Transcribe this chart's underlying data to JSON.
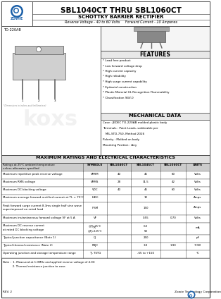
{
  "title_main": "SBL1040CT THRU SBL1060CT",
  "title_sub": "SCHOTTKY BARRIER RECTIFIER",
  "title_line3_left": "Reverse Voltage - 40 to 60 Volts",
  "title_line3_right": "Forward Current - 10 Amperes",
  "package": "TO-220AB",
  "features_title": "FEATURES",
  "features": [
    "Lead free product",
    "Low forward voltage drop",
    "High current capacity",
    "High reliability",
    "High surge current capability",
    "Epitaxial construction",
    "Plastic Material UL Recognition Flammability",
    "Classification 94V-0"
  ],
  "mech_title": "MECHANICAL DATA",
  "mech_items": [
    "Case : JEDEC TO-220AB molded plastic body",
    "Terminals : Point Leads, solderable per",
    "   MIL-STD-750, Method 2026",
    "Polarity : Molded on body",
    "Mounting Position : Any"
  ],
  "table_title": "MAXIMUM RATINGS AND ELECTRICAL CHARACTERISTICS",
  "table_header_left": "Ratings at 25°C ambient temperature\nunless otherwise specified",
  "col_headers": [
    "SYMBOLS",
    "SBL1040CT",
    "SBL1045CT",
    "SBL1060CT",
    "UNITS"
  ],
  "row_params": [
    "Maximum repetitive peak reverse voltage",
    "Maximum RMS voltage",
    "Maximum DC blocking voltage",
    "Maximum average forward rectified current at TL = 75°C",
    "Peak forward surge current 8.3ms single half sine wave\nsuperimposed on rated load",
    "Maximum instantaneous forward voltage VF at 5 A",
    "Maximum DC reverse current\nat rated DC blocking voltage",
    "Typical junction capacitance (Note 1)",
    "Typical thermal resistance (Note 2)",
    "Operating junction and storage temperature range"
  ],
  "row_symbols": [
    "VRRM",
    "VRMS",
    "VDC",
    "I(AV)",
    "IFSM",
    "VF",
    "IR",
    "CJ",
    "RθJC",
    "TJ, TSTG"
  ],
  "row_cond": [
    "",
    "",
    "",
    "",
    "",
    "",
    "@TJ=25°C\n@TJ=125°C",
    "",
    "",
    ""
  ],
  "row_v1": [
    "40",
    "28",
    "40",
    "",
    "",
    "",
    "",
    "",
    "",
    ""
  ],
  "row_v2": [
    "45",
    "31.5",
    "45",
    "10",
    "150",
    "0.55",
    "0.2\n50",
    "250",
    "3.0",
    "-65 to +150"
  ],
  "row_v3": [
    "60",
    "42",
    "60",
    "",
    "",
    "0.70",
    "",
    "",
    "1.90",
    ""
  ],
  "row_units": [
    "Volts",
    "Volts",
    "Volts",
    "Amps",
    "Amps",
    "Volts",
    "mA",
    "pF",
    "°C/W",
    "°C"
  ],
  "row_heights": [
    1,
    1,
    1,
    1,
    1.6,
    1,
    1.5,
    1,
    1,
    1
  ],
  "footer_notes": [
    "Note :  1. Measured at 1.0MHz and applied reverse voltage of 4.0V.",
    "           2. Thermal resistance junction to case."
  ],
  "rev": "REV. 2",
  "company": "Zowie Technology Corporation",
  "bg_color": "#ffffff",
  "logo_blue": "#1a5fa8",
  "border_dark": "#333333",
  "header_bg": "#e8e8e8",
  "section_title_bg": "#e0e0e0",
  "table_header_bg": "#cccccc"
}
